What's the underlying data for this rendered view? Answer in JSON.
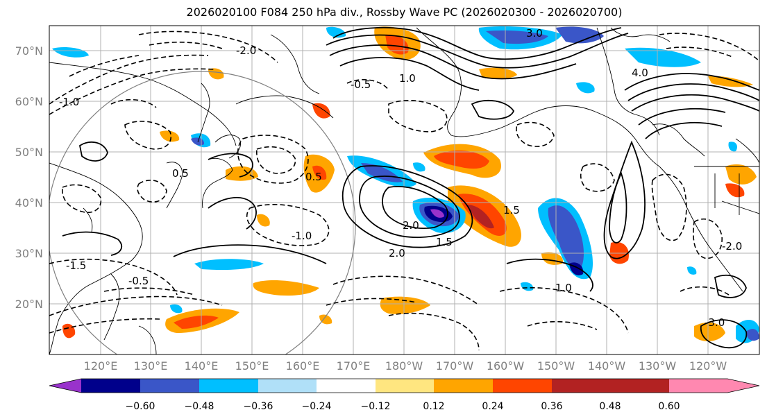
{
  "title": "2026020100 F084 250 hPa div., Rossby Wave PC (2026020300 - 2026020700)",
  "lat_labels": [
    "70°N",
    "60°N",
    "50°N",
    "40°N",
    "30°N",
    "20°N"
  ],
  "lon_labels": [
    "120°E",
    "130°E",
    "140°E",
    "150°E",
    "160°E",
    "170°E",
    "180°W",
    "170°W",
    "160°W",
    "150°W",
    "140°W",
    "130°W",
    "120°W"
  ],
  "colorbar": {
    "ticks": [
      "−0.60",
      "−0.48",
      "−0.36",
      "−0.24",
      "−0.12",
      "0.12",
      "0.24",
      "0.36",
      "0.48",
      "0.60"
    ],
    "colors": [
      "#9932cc",
      "#00008b",
      "#3a56c8",
      "#00bfff",
      "#b0e0f8",
      "#ffffff",
      "#ffe680",
      "#ffa500",
      "#ff4500",
      "#b22222",
      "#ff88b0"
    ]
  },
  "contour_labels": [
    "3.0",
    "4.0",
    "2.0",
    "1.0",
    "0.5",
    "1.5",
    "-0.5",
    "-1.0",
    "-1.5",
    "-2.0",
    "-3.0",
    "0.5",
    "-0.5",
    "1.0",
    "-1.0",
    "1.5",
    "2.0",
    "-2.0"
  ],
  "colors": {
    "grid": "#b0b0b0",
    "axis_label": "#808080"
  }
}
